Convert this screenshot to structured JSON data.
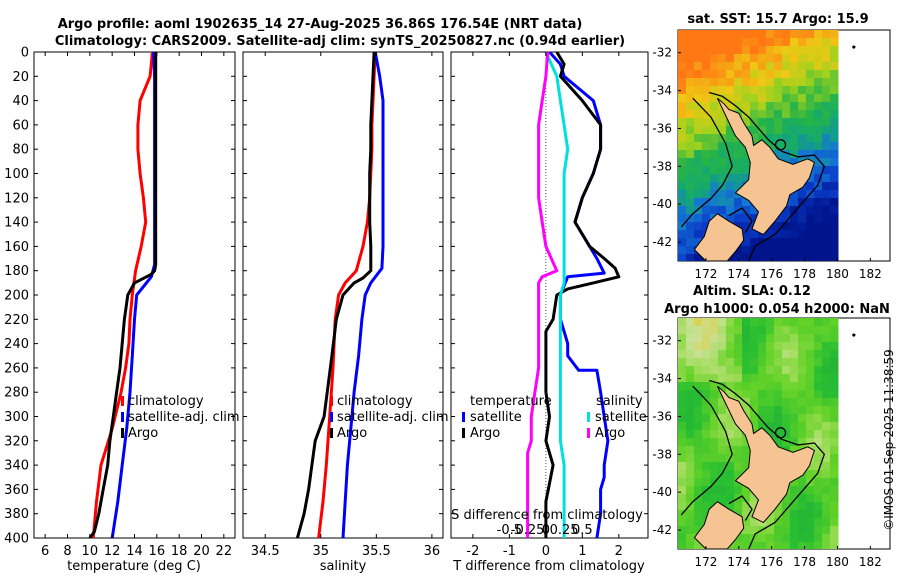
{
  "titles": {
    "line1": "Argo profile: aoml 1902635_14 27-Aug-2025 36.86S 176.54E (NRT data)",
    "line2": "Climatology: CARS2009. Satellite-adj clim: synTS_20250827.nc (0.94d earlier)",
    "sst": "sat. SST: 15.7 Argo: 15.9",
    "sla1": "Altim. SLA: 0.12",
    "sla2": "Argo h1000: 0.054 h2000: NaN",
    "stamp": "©IMOS 01-Sep-2025 11:38:59"
  },
  "colors": {
    "climatology": "#ff0000",
    "satellite": "#0000ff",
    "argo": "#000000",
    "sal_sat": "#00e0e0",
    "sal_argo": "#ff00ff",
    "land": "#f5c492",
    "coast": "#000000"
  },
  "chart_data": [
    {
      "type": "line",
      "id": "temperature",
      "xlabel": "temperature (deg C)",
      "ylabel": "",
      "xlim": [
        5,
        23
      ],
      "ylim": [
        400,
        0
      ],
      "xticks": [
        6,
        8,
        10,
        12,
        14,
        16,
        18,
        20,
        22
      ],
      "yticks": [
        0,
        20,
        40,
        60,
        80,
        100,
        120,
        140,
        160,
        180,
        200,
        220,
        240,
        260,
        280,
        300,
        320,
        340,
        360,
        380,
        400
      ],
      "legend": [
        "climatology",
        "satellite-adj. clim",
        "Argo"
      ],
      "series": [
        {
          "name": "climatology",
          "color": "#ff0000",
          "x": [
            15.6,
            15.5,
            15.4,
            14.5,
            14.3,
            14.3,
            14.5,
            14.8,
            15.0,
            14.6,
            14.1,
            13.8,
            13.6,
            13.5,
            13.2,
            12.8,
            12.0,
            11.0,
            10.6,
            10.3
          ],
          "y": [
            0,
            10,
            20,
            40,
            60,
            80,
            100,
            120,
            140,
            160,
            180,
            200,
            220,
            240,
            260,
            280,
            310,
            340,
            370,
            400
          ]
        },
        {
          "name": "satellite-adj. clim",
          "color": "#0000ff",
          "x": [
            15.7,
            15.8,
            15.8,
            15.8,
            15.8,
            15.8,
            15.8,
            15.8,
            15.8,
            15.8,
            15.5,
            14.2,
            14.0,
            13.8,
            13.6,
            13.3,
            12.9,
            12.5,
            12.0
          ],
          "y": [
            0,
            20,
            40,
            60,
            80,
            100,
            120,
            140,
            160,
            175,
            185,
            200,
            220,
            250,
            280,
            310,
            340,
            370,
            400
          ]
        },
        {
          "name": "Argo",
          "color": "#000000",
          "x": [
            15.9,
            15.9,
            15.9,
            15.9,
            15.9,
            15.9,
            15.8,
            15.5,
            14.0,
            13.4,
            13.1,
            12.9,
            12.7,
            12.4,
            12.1,
            11.8,
            11.6,
            11.2,
            10.8,
            10.4,
            10.0
          ],
          "y": [
            0,
            20,
            60,
            100,
            140,
            175,
            180,
            183,
            190,
            200,
            220,
            240,
            260,
            280,
            300,
            320,
            340,
            360,
            380,
            395,
            400
          ]
        }
      ]
    },
    {
      "type": "line",
      "id": "salinity",
      "xlabel": "salinity",
      "xlim": [
        34.3,
        36.1
      ],
      "ylim": [
        400,
        0
      ],
      "xticks": [
        34.5,
        35,
        35.5,
        36
      ],
      "legend": [
        "climatology",
        "satellite-adj. clim",
        "Argo"
      ],
      "series": [
        {
          "name": "climatology",
          "color": "#ff0000",
          "x": [
            35.49,
            35.48,
            35.47,
            35.46,
            35.46,
            35.45,
            35.44,
            35.42,
            35.38,
            35.32,
            35.22,
            35.16,
            35.13,
            35.12,
            35.11,
            35.08,
            35.05,
            35.02,
            34.98
          ],
          "y": [
            0,
            20,
            40,
            60,
            80,
            100,
            120,
            140,
            160,
            180,
            190,
            200,
            220,
            240,
            260,
            300,
            340,
            370,
            400
          ]
        },
        {
          "name": "satellite-adj. clim",
          "color": "#0000ff",
          "x": [
            35.49,
            35.53,
            35.56,
            35.56,
            35.56,
            35.56,
            35.56,
            35.56,
            35.56,
            35.55,
            35.45,
            35.4,
            35.37,
            35.34,
            35.3,
            35.27,
            35.24,
            35.2
          ],
          "y": [
            0,
            20,
            40,
            60,
            80,
            100,
            120,
            140,
            160,
            178,
            190,
            200,
            220,
            250,
            280,
            310,
            340,
            400
          ]
        },
        {
          "name": "Argo",
          "color": "#000000",
          "x": [
            35.48,
            35.47,
            35.46,
            35.45,
            35.45,
            35.44,
            35.44,
            35.44,
            35.45,
            35.45,
            35.38,
            35.3,
            35.2,
            35.14,
            35.1,
            35.03,
            34.95,
            34.92,
            34.89,
            34.85,
            34.79
          ],
          "y": [
            0,
            20,
            40,
            60,
            80,
            100,
            120,
            140,
            160,
            180,
            186,
            190,
            200,
            220,
            250,
            300,
            320,
            340,
            360,
            380,
            400
          ]
        }
      ]
    },
    {
      "type": "line",
      "id": "differences",
      "xlabel": "T difference from climatology",
      "xlabel_top": "S difference from climatology",
      "xlim": [
        -2.6,
        2.8
      ],
      "ylim": [
        400,
        0
      ],
      "xticks": [
        -2,
        -1,
        0,
        1,
        2
      ],
      "xticks_s": [
        "-0.5",
        "-0.25",
        "0",
        "0.25",
        "0.5"
      ],
      "legend_t_title": "temperature",
      "legend_s_title": "salinity",
      "legend_t": [
        "satellite",
        "Argo"
      ],
      "legend_s": [
        "satellite",
        "Argo"
      ],
      "series": [
        {
          "name": "T satellite",
          "color": "#0000ff",
          "x": [
            0.1,
            0.4,
            0.5,
            1.3,
            1.5,
            1.5,
            1.3,
            1.0,
            0.8,
            1.2,
            1.4,
            1.6,
            0.6,
            0.4,
            0.4,
            0.5,
            0.6,
            0.6,
            0.9,
            1.4,
            1.5,
            1.6,
            1.7,
            1.6,
            1.6,
            1.5,
            1.5,
            1.4
          ],
          "y": [
            0,
            10,
            20,
            40,
            60,
            80,
            100,
            120,
            140,
            160,
            170,
            182,
            185,
            200,
            220,
            230,
            240,
            250,
            262,
            262,
            280,
            300,
            320,
            340,
            350,
            360,
            380,
            400
          ]
        },
        {
          "name": "T Argo",
          "color": "#000000",
          "x": [
            0.3,
            0.5,
            0.4,
            1.0,
            1.5,
            1.5,
            1.3,
            1.0,
            0.8,
            1.2,
            1.6,
            1.9,
            2.0,
            1.3,
            0.6,
            0.3,
            0.2,
            0.0,
            0.0,
            0.0,
            0.1,
            0.0,
            0.2,
            0.0,
            0.0
          ],
          "y": [
            0,
            10,
            20,
            40,
            60,
            80,
            100,
            120,
            140,
            160,
            170,
            178,
            185,
            190,
            195,
            200,
            220,
            230,
            250,
            280,
            300,
            320,
            340,
            370,
            400
          ]
        },
        {
          "name": "S satellite",
          "color": "#00e0e0",
          "x": [
            0.0,
            0.3,
            0.4,
            0.5,
            0.6,
            0.5,
            0.5,
            0.5,
            0.5,
            0.5,
            0.5,
            0.4,
            0.4,
            0.4,
            0.4,
            0.4,
            0.4,
            0.4,
            0.5,
            0.5,
            0.5
          ],
          "y": [
            0,
            20,
            40,
            60,
            80,
            100,
            120,
            140,
            160,
            180,
            190,
            200,
            220,
            240,
            260,
            280,
            300,
            320,
            340,
            370,
            400
          ]
        },
        {
          "name": "S Argo",
          "color": "#ff00ff",
          "x": [
            0.05,
            0.0,
            -0.1,
            -0.2,
            -0.2,
            -0.2,
            -0.2,
            -0.1,
            0.0,
            0.3,
            -0.1,
            -0.2,
            -0.2,
            -0.2,
            -0.2,
            -0.2,
            -0.3,
            -0.4,
            -0.4,
            -0.5,
            -0.5,
            -0.5,
            -0.5,
            -0.5
          ],
          "y": [
            0,
            20,
            40,
            60,
            80,
            100,
            120,
            140,
            160,
            180,
            185,
            190,
            200,
            220,
            240,
            260,
            280,
            300,
            320,
            330,
            340,
            360,
            380,
            400
          ]
        }
      ]
    },
    {
      "type": "heatmap",
      "id": "sst-map",
      "title": "sat. SST: 15.7 Argo: 15.9",
      "xticks": [
        172,
        174,
        176,
        178,
        180,
        182
      ],
      "yticks": [
        -32,
        -34,
        -36,
        -38,
        -40,
        -42
      ],
      "xlim": [
        170.3,
        183.2
      ],
      "ylim": [
        -43,
        -30.8
      ],
      "marker": [
        176.54,
        -36.86
      ],
      "dot": [
        181,
        -31.7
      ]
    },
    {
      "type": "heatmap",
      "id": "sla-map",
      "title": "Altim. SLA: 0.12",
      "subtitle": "Argo h1000: 0.054 h2000: NaN",
      "xticks": [
        172,
        174,
        176,
        178,
        180,
        182
      ],
      "yticks": [
        -32,
        -34,
        -36,
        -38,
        -40,
        -42
      ],
      "xlim": [
        170.3,
        183.2
      ],
      "ylim": [
        -43,
        -30.8
      ],
      "marker": [
        176.54,
        -36.86
      ],
      "dot": [
        181,
        -31.7
      ]
    }
  ]
}
